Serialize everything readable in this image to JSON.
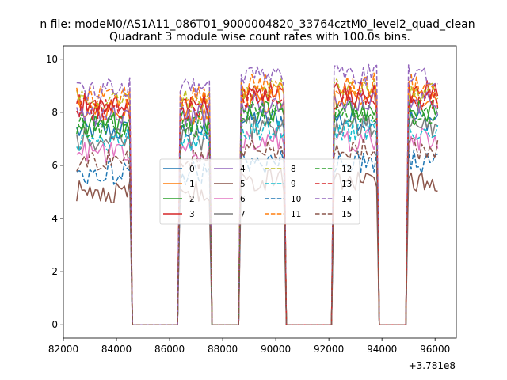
{
  "figure": {
    "suptitle": "n file: modeM0/AS1A11_086T01_9000004820_33764cztM0_level2_quad_clean",
    "title": "Quadrant 3 module wise count rates with 100.0s bins."
  },
  "chart_data": {
    "type": "line",
    "title": "Quadrant 3 module wise count rates with 100.0s bins.",
    "xlabel": "",
    "ylabel": "",
    "x_offset_label": "+3.781e8",
    "xlim": [
      82000,
      96800
    ],
    "ylim": [
      -0.5,
      10.5
    ],
    "x_ticks": [
      82000,
      84000,
      86000,
      88000,
      90000,
      92000,
      94000,
      96000
    ],
    "x_tick_labels": [
      "82000",
      "84000",
      "86000",
      "88000",
      "90000",
      "92000",
      "94000",
      "96000"
    ],
    "y_ticks": [
      0,
      2,
      4,
      6,
      8,
      10
    ],
    "y_tick_labels": [
      "0",
      "2",
      "4",
      "6",
      "8",
      "10"
    ],
    "grid": false,
    "legend_position": "center",
    "on_intervals": [
      [
        82500,
        84500
      ],
      [
        86400,
        87500
      ],
      [
        88700,
        90300
      ],
      [
        92200,
        93800
      ],
      [
        95000,
        96150
      ]
    ],
    "series": [
      {
        "name": "0",
        "color": "#1f77b4",
        "dash": "solid",
        "level": 7.3
      },
      {
        "name": "1",
        "color": "#ff7f0e",
        "dash": "solid",
        "level": 8.0
      },
      {
        "name": "2",
        "color": "#2ca02c",
        "dash": "solid",
        "level": 7.6
      },
      {
        "name": "3",
        "color": "#d62728",
        "dash": "solid",
        "level": 8.3
      },
      {
        "name": "4",
        "color": "#9467bd",
        "dash": "solid",
        "level": 7.9
      },
      {
        "name": "5",
        "color": "#8c564b",
        "dash": "solid",
        "level": 5.0
      },
      {
        "name": "6",
        "color": "#e377c2",
        "dash": "solid",
        "level": 6.5
      },
      {
        "name": "7",
        "color": "#7f7f7f",
        "dash": "solid",
        "level": 7.0
      },
      {
        "name": "8",
        "color": "#bcbd22",
        "dash": "dashed",
        "level": 8.4
      },
      {
        "name": "9",
        "color": "#17becf",
        "dash": "dashed",
        "level": 6.9
      },
      {
        "name": "10",
        "color": "#1f77b4",
        "dash": "dashed",
        "level": 5.7
      },
      {
        "name": "11",
        "color": "#ff7f0e",
        "dash": "dashed",
        "level": 8.6
      },
      {
        "name": "12",
        "color": "#2ca02c",
        "dash": "dashed",
        "level": 7.5
      },
      {
        "name": "13",
        "color": "#d62728",
        "dash": "dashed",
        "level": 8.1
      },
      {
        "name": "14",
        "color": "#9467bd",
        "dash": "dashed",
        "level": 8.9
      },
      {
        "name": "15",
        "color": "#8c564b",
        "dash": "dashed",
        "level": 6.2
      }
    ]
  }
}
